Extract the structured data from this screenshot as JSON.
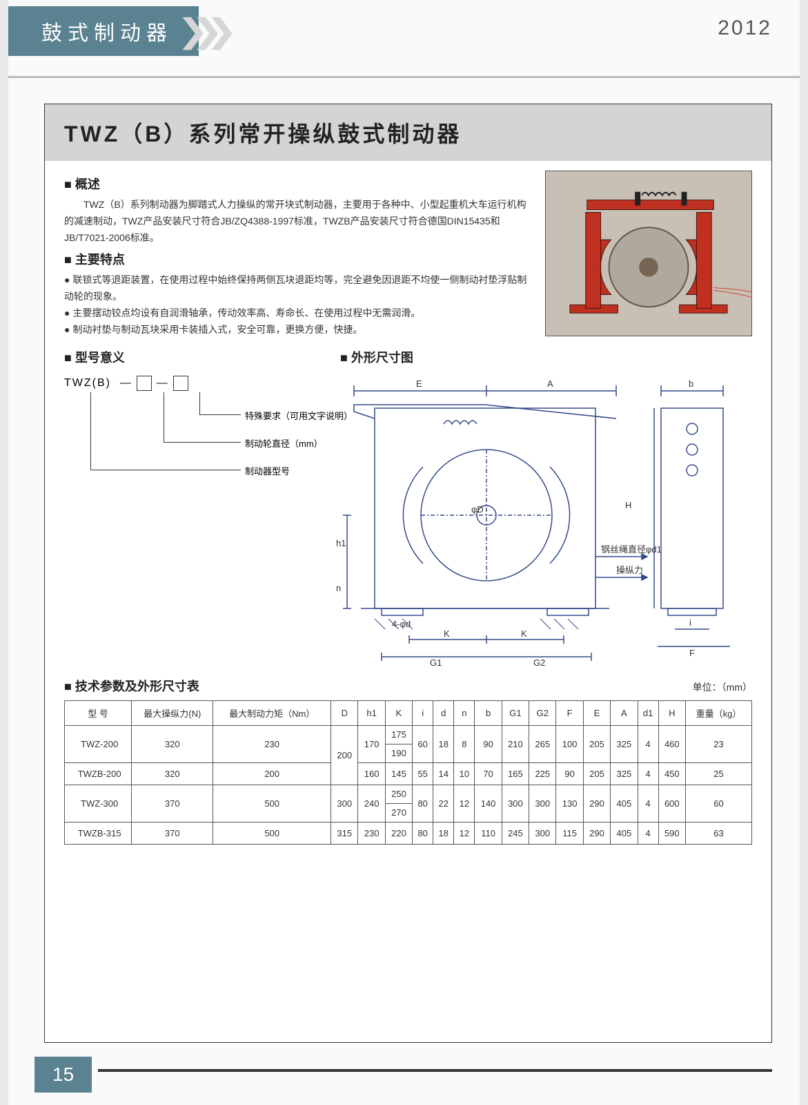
{
  "header": {
    "category": "鼓式制动器",
    "year": "2012"
  },
  "title": "TWZ（B）系列常开操纵鼓式制动器",
  "overview": {
    "heading": "概述",
    "text": "TWZ（B）系列制动器为脚踏式人力操纵的常开块式制动器，主要用于各种中、小型起重机大车运行机构的减速制动，TWZ产品安装尺寸符合JB/ZQ4388-1997标准，TWZB产品安装尺寸符合德国DIN15435和JB/T7021-2006标准。"
  },
  "features": {
    "heading": "主要特点",
    "items": [
      "联锁式等退距装置，在使用过程中始终保持两侧瓦块退距均等，完全避免因退距不均使一侧制动衬垫浮贴制动轮的现象。",
      "主要摆动铰点均设有自润滑轴承，传动效率高、寿命长、在使用过程中无需润滑。",
      "制动衬垫与制动瓦块采用卡装插入式，安全可靠，更换方便，快捷。"
    ]
  },
  "modelMeaning": {
    "heading": "型号意义",
    "code": "TWZ(B)",
    "labels": {
      "special": "特殊要求（可用文字说明）",
      "diameter": "制动轮直径（mm）",
      "model": "制动器型号"
    }
  },
  "dimDrawing": {
    "heading": "外形尺寸图",
    "labels": {
      "E": "E",
      "A": "A",
      "b": "b",
      "H": "H",
      "phiD": "φD",
      "h1": "h1",
      "n": "n",
      "fourPhid": "4-φd",
      "wire": "钢丝绳直径φd1",
      "force": "操纵力",
      "K": "K",
      "G1": "G1",
      "G2": "G2",
      "i": "i",
      "F": "F"
    }
  },
  "specTable": {
    "heading": "技术参数及外形尺寸表",
    "unit": "单位：（mm）",
    "columns": [
      "型  号",
      "最大操纵力(N)",
      "最大制动力矩（Nm）",
      "D",
      "h1",
      "K",
      "i",
      "d",
      "n",
      "b",
      "G1",
      "G2",
      "F",
      "E",
      "A",
      "d1",
      "H",
      "重量（kg）"
    ],
    "rows": [
      {
        "model": "TWZ-200",
        "force": "320",
        "torque": "230",
        "D": "200",
        "h1": "170",
        "K": "175\n190",
        "i": "60",
        "d": "18",
        "n": "8",
        "b": "90",
        "G1": "210",
        "G2": "265",
        "F": "100",
        "E": "205",
        "A": "325",
        "d1": "4",
        "H": "460",
        "wt": "23",
        "D_span": 2
      },
      {
        "model": "TWZB-200",
        "force": "320",
        "torque": "200",
        "D": "",
        "h1": "160",
        "K": "145",
        "i": "55",
        "d": "14",
        "n": "10",
        "b": "70",
        "G1": "165",
        "G2": "225",
        "F": "90",
        "E": "205",
        "A": "325",
        "d1": "4",
        "H": "450",
        "wt": "25"
      },
      {
        "model": "TWZ-300",
        "force": "370",
        "torque": "500",
        "D": "300",
        "h1": "240",
        "K": "250\n270",
        "i": "80",
        "d": "22",
        "n": "12",
        "b": "140",
        "G1": "300",
        "G2": "300",
        "F": "130",
        "E": "290",
        "A": "405",
        "d1": "4",
        "H": "600",
        "wt": "60"
      },
      {
        "model": "TWZB-315",
        "force": "370",
        "torque": "500",
        "D": "315",
        "h1": "230",
        "K": "220",
        "i": "80",
        "d": "18",
        "n": "12",
        "b": "110",
        "G1": "245",
        "G2": "300",
        "F": "115",
        "E": "290",
        "A": "405",
        "d1": "4",
        "H": "590",
        "wt": "63"
      }
    ]
  },
  "pageNumber": "15",
  "colors": {
    "accent": "#5a8290",
    "titleBg": "#d4d4d4",
    "photoBg": "#c8c0b4",
    "brakeRed": "#c0392b",
    "diagramStroke": "#334a8c"
  }
}
